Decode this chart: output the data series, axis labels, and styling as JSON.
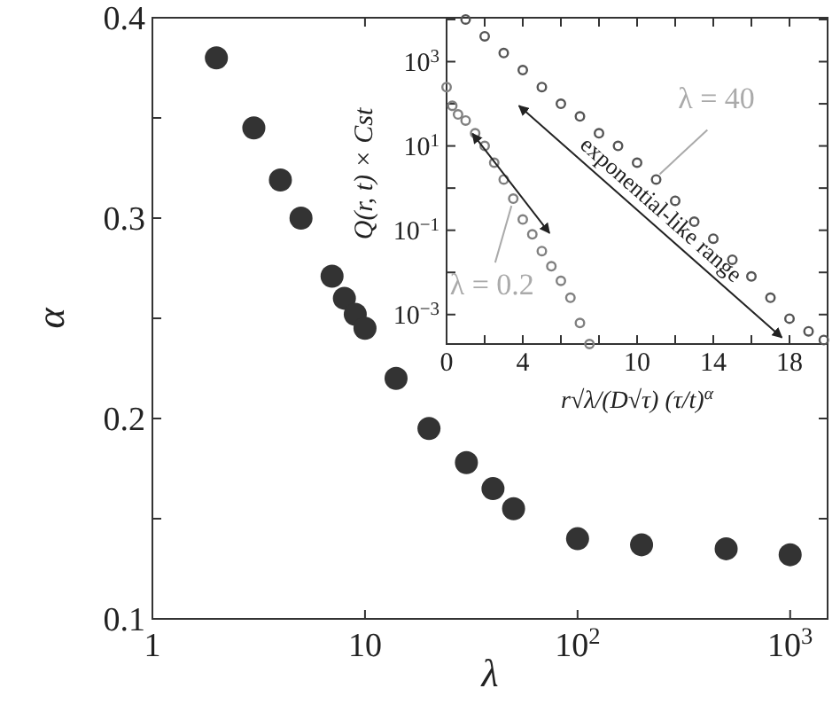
{
  "chart_data": [
    {
      "type": "scatter",
      "xlabel": "λ",
      "ylabel": "α",
      "log": "x",
      "marker": "circle",
      "grid": false,
      "xlim": [
        1,
        1500
      ],
      "ylim": [
        0.1,
        0.4
      ],
      "xticks": [
        1,
        10,
        {
          "value": 100,
          "label": "10$^{2}$"
        },
        {
          "value": 1000,
          "label": "10$^{3}$"
        }
      ],
      "yticks": [
        0.1,
        {
          "value": 0.15,
          "label": null
        },
        0.2,
        {
          "value": 0.25,
          "label": null
        },
        0.3,
        {
          "value": 0.35,
          "label": null
        },
        0.4
      ],
      "x": [
        2,
        3,
        4,
        5,
        7,
        8,
        9,
        10,
        14,
        20,
        30,
        40,
        50,
        100,
        200,
        500,
        1000
      ],
      "series": [
        {
          "color": "#333333",
          "values": [
            0.38,
            0.345,
            0.319,
            0.3,
            0.271,
            0.26,
            0.252,
            0.245,
            0.22,
            0.195,
            0.178,
            0.165,
            0.155,
            0.14,
            0.137,
            0.135,
            0.132
          ]
        }
      ]
    },
    {
      "type": "scatter",
      "xlabel": "r√λ/(D√τ) (τ/t)$^{α}$",
      "ylabel": "Q(r, t) × Cst",
      "log": "y",
      "marker": "circle",
      "grid": false,
      "xlim": [
        0,
        20
      ],
      "ylim": [
        0.0002,
        11000
      ],
      "xticks": [
        0,
        {
          "value": 2,
          "label": null
        },
        4,
        {
          "value": 6,
          "label": null
        },
        {
          "value": 8,
          "label": null
        },
        10,
        {
          "value": 12,
          "label": null
        },
        14,
        {
          "value": 16,
          "label": null
        },
        18
      ],
      "yticks": [
        {
          "value": 0.001,
          "label": "10$^{−3}$"
        },
        {
          "value": 0.01,
          "label": null
        },
        {
          "value": 0.1,
          "label": "10$^{−1}$"
        },
        {
          "value": 1,
          "label": null
        },
        {
          "value": 10,
          "label": "10$^{1}$"
        },
        {
          "value": 100,
          "label": null
        },
        {
          "value": 1000,
          "label": "10$^{3}$"
        },
        {
          "value": 10000,
          "label": null
        }
      ],
      "annotations": [
        "exponential-like range"
      ],
      "series": [
        {
          "name": "λ = 40",
          "color": "#555555",
          "x": [
            1,
            2,
            3,
            4,
            5,
            6,
            7,
            8,
            9,
            10,
            11,
            12,
            13,
            14,
            15,
            16,
            17,
            18,
            19,
            19.8
          ],
          "values": [
            10000,
            4000,
            1600,
            630,
            250,
            100,
            50,
            20,
            10,
            4,
            1.6,
            0.5,
            0.16,
            0.063,
            0.02,
            0.008,
            0.0025,
            0.0008,
            0.0004,
            0.00025
          ]
        },
        {
          "name": "λ = 0.2",
          "color": "#808080",
          "x": [
            0,
            0.3,
            0.6,
            1,
            1.5,
            2,
            2.5,
            3,
            3.5,
            4,
            4.5,
            5,
            5.5,
            6,
            6.5,
            7,
            7.5
          ],
          "values": [
            250,
            90,
            56,
            40,
            20,
            10,
            4,
            1.6,
            0.56,
            0.18,
            0.08,
            0.032,
            0.014,
            0.0063,
            0.0025,
            0.00063,
            0.0002
          ]
        }
      ]
    }
  ]
}
